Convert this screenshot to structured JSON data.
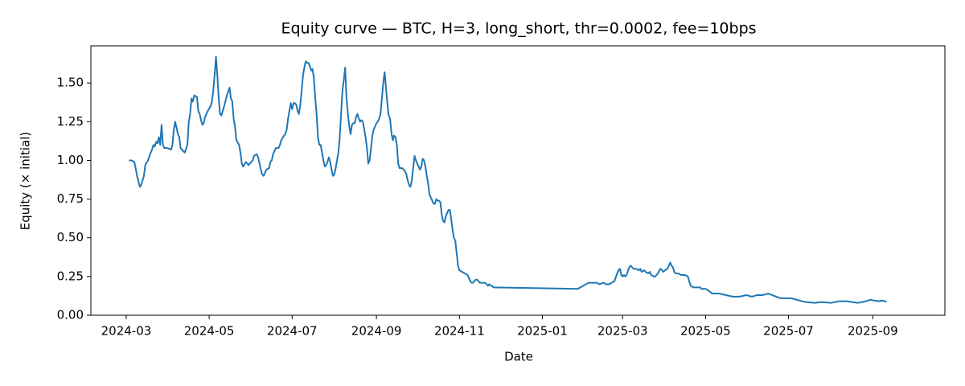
{
  "chart_data": {
    "type": "line",
    "title": "Equity curve — BTC, H=3, long_short, thr=0.0002, fee=10bps",
    "xlabel": "Date",
    "ylabel": "Equity (× initial)",
    "x": [
      2,
      4,
      6,
      8,
      10,
      11,
      13,
      14,
      16,
      18,
      19,
      20,
      21,
      22,
      23,
      24,
      25,
      26,
      27,
      28,
      30,
      33,
      34,
      35,
      36,
      38,
      39,
      40,
      42,
      43,
      45,
      46,
      47,
      48,
      49,
      50,
      52,
      53,
      54,
      55,
      56,
      57,
      58,
      60,
      62,
      63,
      64,
      65,
      66,
      67,
      68,
      69,
      70,
      71,
      72,
      74,
      76,
      77,
      78,
      79,
      80,
      81,
      83,
      84,
      85,
      86,
      88,
      90,
      91,
      93,
      94,
      96,
      97,
      98,
      99,
      100,
      101,
      102,
      103,
      105,
      106,
      107,
      108,
      110,
      112,
      113,
      114,
      116,
      117,
      118,
      119,
      120,
      121,
      122,
      123,
      124,
      125,
      126,
      127,
      128,
      129,
      130,
      131,
      132,
      133,
      134,
      135,
      136,
      137,
      138,
      139,
      140,
      141,
      142,
      143,
      144,
      145,
      146,
      147,
      148,
      149,
      150,
      151,
      152,
      153,
      154,
      155,
      156,
      157,
      158,
      159,
      160,
      161,
      162,
      163,
      164,
      165,
      166,
      167,
      168,
      169,
      170,
      171,
      172,
      173,
      174,
      175,
      176,
      177,
      178,
      179,
      180,
      181,
      182,
      183,
      184,
      185,
      186,
      187,
      188,
      189,
      190,
      191,
      192,
      193,
      194,
      195,
      196,
      197,
      198,
      199,
      200,
      201,
      203,
      205,
      206,
      207,
      208,
      209,
      210,
      211,
      212,
      213,
      214,
      215,
      216,
      217,
      218,
      219,
      220,
      221,
      222,
      223,
      224,
      225,
      226,
      227,
      228,
      229,
      230,
      231,
      232,
      233,
      234,
      235,
      236,
      237,
      238,
      239,
      240,
      241,
      242,
      243,
      244,
      245,
      247,
      249,
      251,
      252,
      253,
      254,
      255,
      256,
      257,
      258,
      259,
      260,
      262,
      264,
      265,
      266,
      267,
      268,
      269,
      270,
      300,
      332,
      334,
      336,
      338,
      340,
      343,
      346,
      348,
      351,
      353,
      355,
      357,
      359,
      361,
      362,
      363,
      364,
      365,
      366,
      367,
      368,
      369,
      370,
      371,
      373,
      375,
      377,
      378,
      379,
      381,
      382,
      384,
      385,
      386,
      388,
      389,
      391,
      392,
      393,
      395,
      396,
      398,
      399,
      400,
      401,
      402,
      403,
      404,
      406,
      408,
      411,
      413,
      414,
      415,
      417,
      420,
      422,
      423,
      426,
      428,
      431,
      436,
      441,
      446,
      451,
      456,
      460,
      464,
      468,
      472,
      475,
      478,
      481,
      485,
      489,
      493,
      497,
      500,
      506,
      512,
      518,
      524,
      530,
      534,
      538,
      541,
      544,
      547,
      550,
      553,
      556,
      558,
      559
    ],
    "series": [
      {
        "name": "Equity",
        "color": "#1f77b4",
        "values": [
          1.0,
          1.0,
          0.99,
          0.9,
          0.83,
          0.84,
          0.9,
          0.97,
          1.0,
          1.05,
          1.07,
          1.1,
          1.09,
          1.12,
          1.11,
          1.15,
          1.1,
          1.23,
          1.1,
          1.08,
          1.08,
          1.07,
          1.1,
          1.2,
          1.25,
          1.17,
          1.15,
          1.08,
          1.06,
          1.05,
          1.1,
          1.25,
          1.3,
          1.4,
          1.38,
          1.42,
          1.41,
          1.32,
          1.3,
          1.26,
          1.23,
          1.24,
          1.28,
          1.32,
          1.35,
          1.38,
          1.45,
          1.55,
          1.67,
          1.55,
          1.4,
          1.3,
          1.29,
          1.32,
          1.35,
          1.42,
          1.47,
          1.4,
          1.38,
          1.27,
          1.22,
          1.13,
          1.1,
          1.05,
          0.98,
          0.96,
          0.99,
          0.97,
          0.98,
          1.0,
          1.03,
          1.04,
          1.02,
          0.98,
          0.94,
          0.91,
          0.9,
          0.92,
          0.94,
          0.95,
          0.99,
          1.0,
          1.04,
          1.08,
          1.08,
          1.1,
          1.13,
          1.16,
          1.17,
          1.2,
          1.27,
          1.32,
          1.37,
          1.33,
          1.37,
          1.37,
          1.36,
          1.32,
          1.3,
          1.36,
          1.45,
          1.55,
          1.6,
          1.64,
          1.63,
          1.63,
          1.61,
          1.58,
          1.59,
          1.53,
          1.4,
          1.3,
          1.15,
          1.1,
          1.1,
          1.05,
          1.0,
          0.96,
          0.97,
          0.99,
          1.02,
          0.99,
          0.94,
          0.9,
          0.91,
          0.95,
          1.0,
          1.05,
          1.15,
          1.3,
          1.45,
          1.52,
          1.6,
          1.4,
          1.3,
          1.22,
          1.17,
          1.23,
          1.24,
          1.24,
          1.28,
          1.3,
          1.27,
          1.25,
          1.26,
          1.25,
          1.2,
          1.15,
          1.08,
          0.98,
          1.0,
          1.08,
          1.16,
          1.2,
          1.22,
          1.24,
          1.25,
          1.27,
          1.3,
          1.4,
          1.5,
          1.57,
          1.47,
          1.37,
          1.29,
          1.27,
          1.18,
          1.13,
          1.16,
          1.15,
          1.1,
          0.98,
          0.95,
          0.95,
          0.93,
          0.91,
          0.87,
          0.84,
          0.83,
          0.87,
          0.95,
          1.03,
          1.0,
          0.98,
          0.96,
          0.94,
          0.96,
          1.01,
          1.0,
          0.96,
          0.9,
          0.85,
          0.78,
          0.76,
          0.74,
          0.72,
          0.72,
          0.75,
          0.74,
          0.74,
          0.73,
          0.65,
          0.61,
          0.6,
          0.64,
          0.66,
          0.68,
          0.68,
          0.62,
          0.55,
          0.5,
          0.48,
          0.4,
          0.32,
          0.29,
          0.28,
          0.27,
          0.26,
          0.24,
          0.22,
          0.21,
          0.21,
          0.22,
          0.23,
          0.23,
          0.22,
          0.21,
          0.21,
          0.21,
          0.2,
          0.19,
          0.2,
          0.19,
          0.19,
          0.18,
          0.175,
          0.17,
          0.18,
          0.19,
          0.2,
          0.21,
          0.21,
          0.21,
          0.2,
          0.21,
          0.2,
          0.2,
          0.21,
          0.22,
          0.27,
          0.29,
          0.3,
          0.26,
          0.25,
          0.26,
          0.25,
          0.26,
          0.29,
          0.31,
          0.32,
          0.3,
          0.3,
          0.29,
          0.3,
          0.28,
          0.29,
          0.28,
          0.27,
          0.28,
          0.26,
          0.25,
          0.25,
          0.27,
          0.29,
          0.3,
          0.28,
          0.29,
          0.3,
          0.32,
          0.34,
          0.32,
          0.31,
          0.28,
          0.27,
          0.27,
          0.26,
          0.26,
          0.25,
          0.22,
          0.19,
          0.18,
          0.18,
          0.18,
          0.17,
          0.17,
          0.16,
          0.14,
          0.14,
          0.13,
          0.12,
          0.12,
          0.13,
          0.12,
          0.13,
          0.13,
          0.14,
          0.13,
          0.12,
          0.11,
          0.11,
          0.11,
          0.1,
          0.09,
          0.085,
          0.08,
          0.085,
          0.08,
          0.09,
          0.09,
          0.085,
          0.08,
          0.085,
          0.09,
          0.1,
          0.095,
          0.09,
          0.095,
          0.09,
          0.085
        ]
      }
    ],
    "xlim": [
      -26,
      602
    ],
    "xticks": [
      {
        "value": 0,
        "label": "2024-03"
      },
      {
        "value": 61,
        "label": "2024-05"
      },
      {
        "value": 122,
        "label": "2024-07"
      },
      {
        "value": 184,
        "label": "2024-09"
      },
      {
        "value": 245,
        "label": "2024-11"
      },
      {
        "value": 306,
        "label": "2025-01"
      },
      {
        "value": 365,
        "label": "2025-03"
      },
      {
        "value": 426,
        "label": "2025-05"
      },
      {
        "value": 487,
        "label": "2025-07"
      },
      {
        "value": 549,
        "label": "2025-09"
      }
    ],
    "ylim": [
      0,
      1.74
    ],
    "yticks": [
      {
        "value": 0,
        "label": "0.00"
      },
      {
        "value": 0.25,
        "label": "0.25"
      },
      {
        "value": 0.5,
        "label": "0.50"
      },
      {
        "value": 0.75,
        "label": "0.75"
      },
      {
        "value": 1,
        "label": "1.00"
      },
      {
        "value": 1.25,
        "label": "1.25"
      },
      {
        "value": 1.5,
        "label": "1.50"
      }
    ],
    "grid": false
  }
}
